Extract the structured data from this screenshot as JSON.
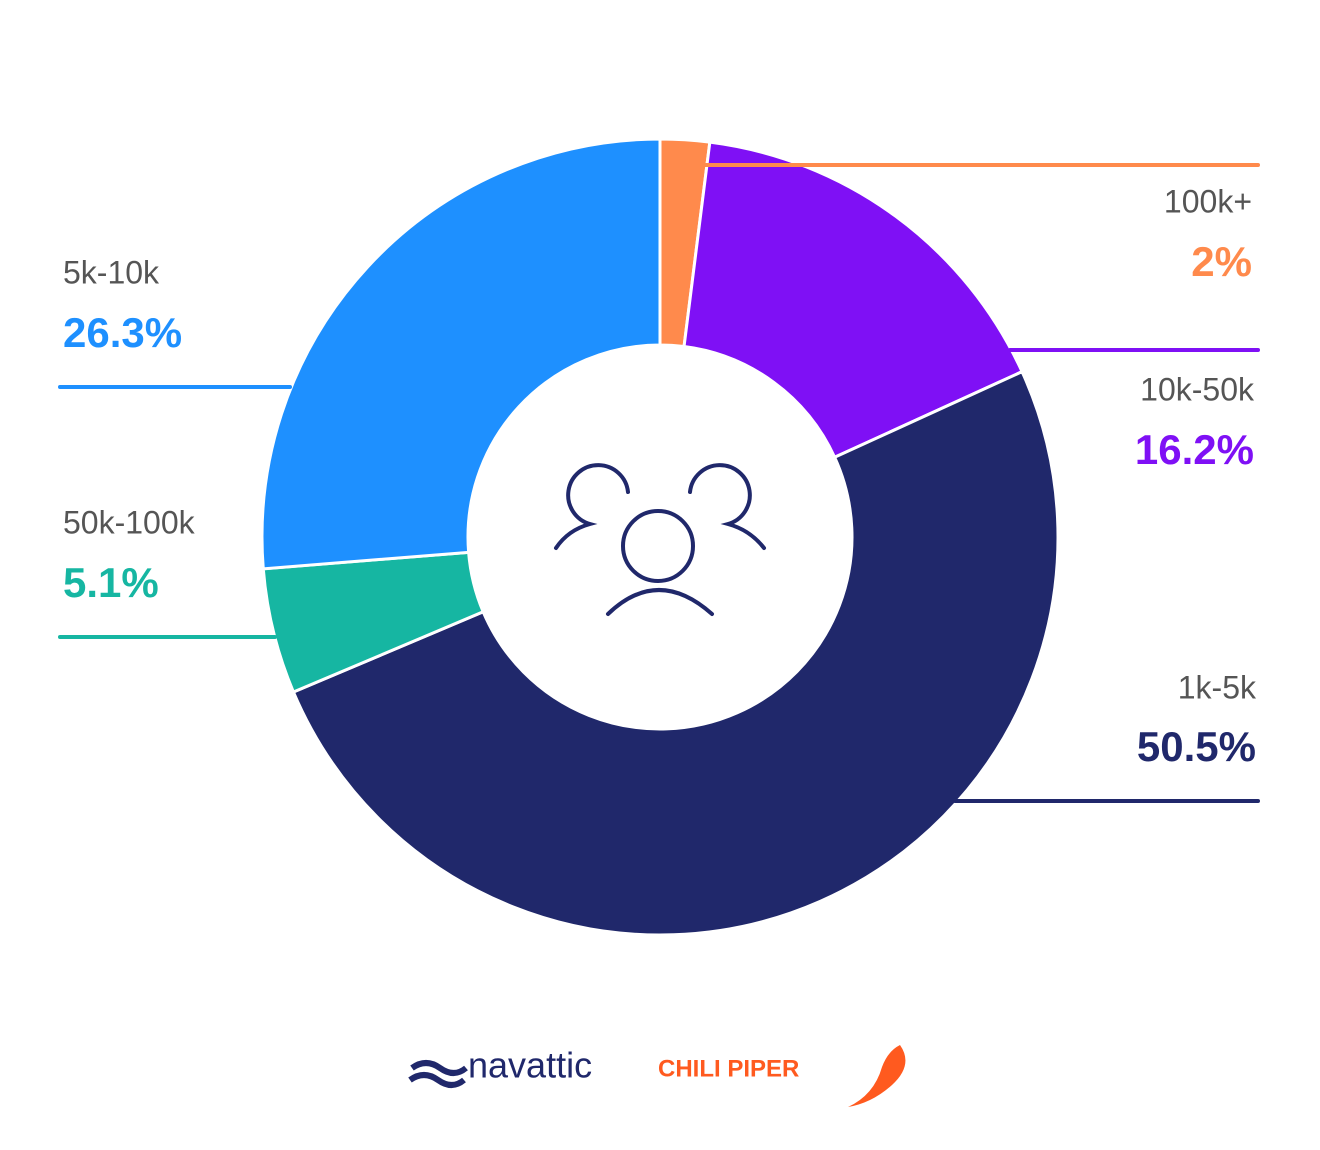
{
  "chart_data": {
    "type": "donut",
    "categories": [
      "100k+",
      "10k-50k",
      "1k-5k",
      "50k-100k",
      "5k-10k"
    ],
    "values": [
      2,
      16.2,
      50.5,
      5.1,
      26.3
    ],
    "value_labels": [
      "2%",
      "16.2%",
      "50.5%",
      "5.1%",
      "26.3%"
    ],
    "colors": [
      "#FF8A4C",
      "#7F10F5",
      "#20286B",
      "#16B6A2",
      "#1E90FF"
    ]
  },
  "logos": [
    "navattic",
    "CHILI PIPER"
  ]
}
